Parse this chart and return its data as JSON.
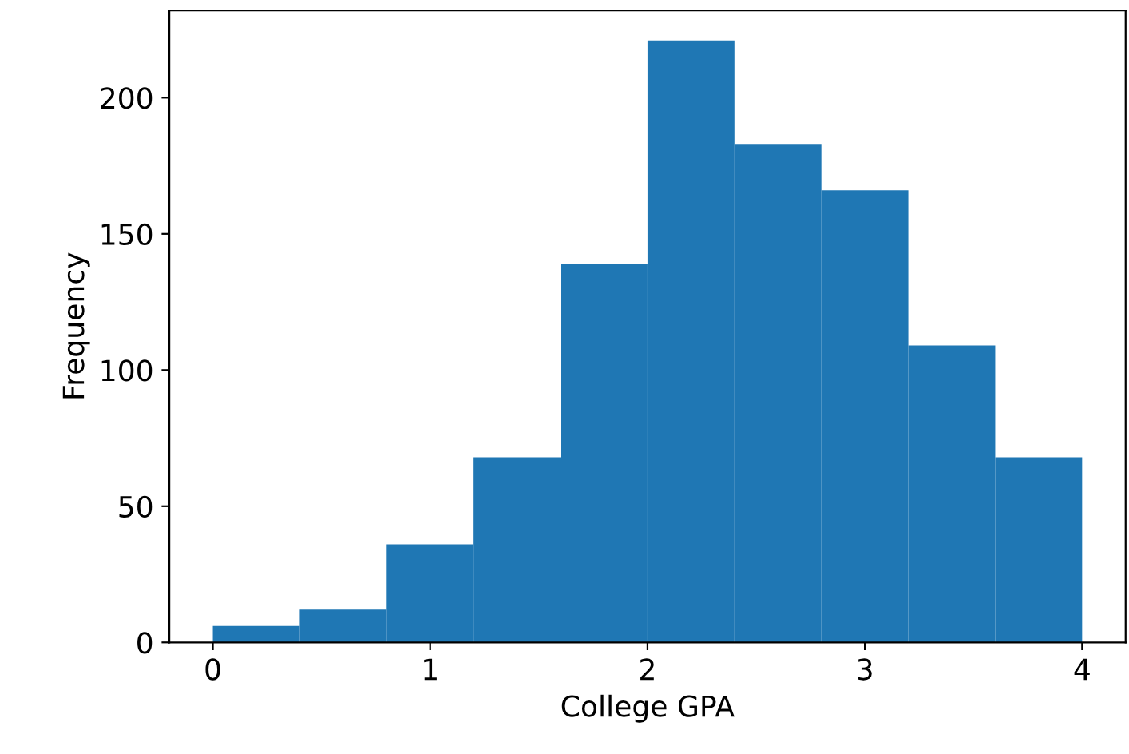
{
  "chart_data": {
    "type": "histogram",
    "xlabel": "College GPA",
    "ylabel": "Frequency",
    "bins": [
      0,
      0.4,
      0.8,
      1.2,
      1.6,
      2.0,
      2.4,
      2.8,
      3.2,
      3.6,
      4.0
    ],
    "values": [
      6,
      12,
      36,
      68,
      139,
      221,
      183,
      166,
      109,
      68
    ],
    "color": "#1f77b4",
    "xlim": [
      -0.2,
      4.2
    ],
    "xticks": [
      0,
      1,
      2,
      3,
      4
    ],
    "ylim": [
      0,
      232
    ],
    "yticks": [
      0,
      50,
      100,
      150,
      200
    ],
    "grid": false,
    "legend": false
  }
}
